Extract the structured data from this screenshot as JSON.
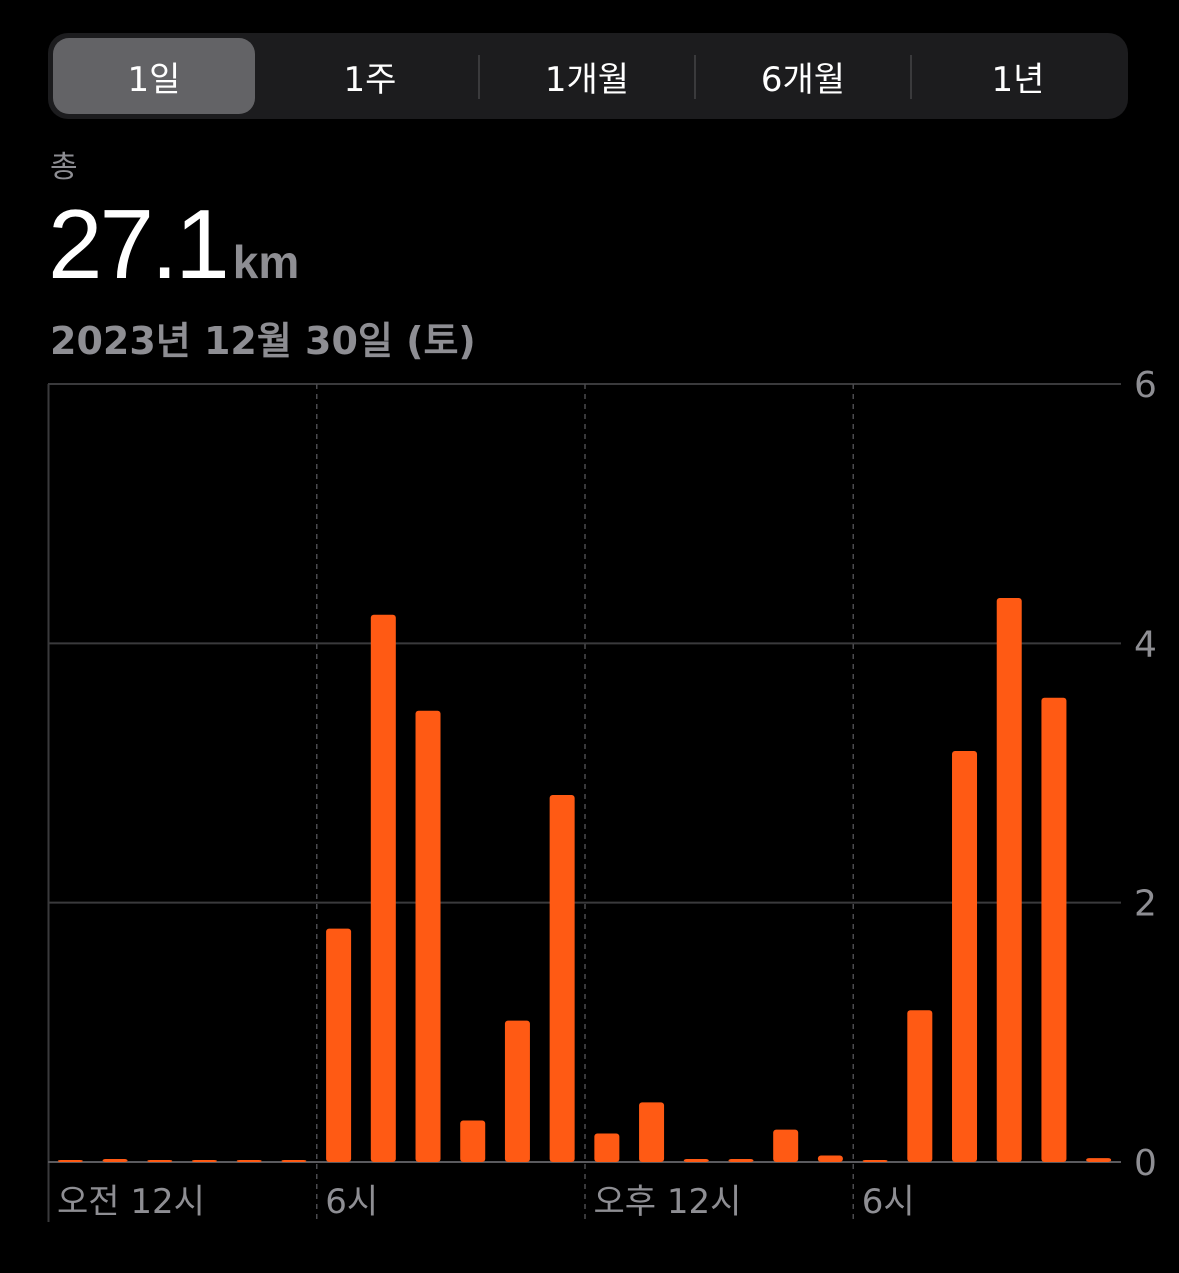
{
  "tabs": [
    {
      "label": "1일",
      "selected": true
    },
    {
      "label": "1주",
      "selected": false
    },
    {
      "label": "1개월",
      "selected": false
    },
    {
      "label": "6개월",
      "selected": false
    },
    {
      "label": "1년",
      "selected": false
    }
  ],
  "summary": {
    "label": "총",
    "value": "27.1",
    "unit": "km",
    "date": "2023년 12월 30일 (토)"
  },
  "colors": {
    "bar": "#ff5a14",
    "grid": "#3a3a3c",
    "axis_text": "#8e8e93",
    "selected_tab": "#636366"
  },
  "chart_data": {
    "type": "bar",
    "title": "",
    "xlabel": "",
    "ylabel": "km",
    "ylim": [
      0,
      6
    ],
    "y_ticks": [
      0,
      2,
      4,
      6
    ],
    "x_tick_labels": [
      {
        "hour": 0,
        "label": "오전 12시"
      },
      {
        "hour": 6,
        "label": "6시"
      },
      {
        "hour": 12,
        "label": "오후 12시"
      },
      {
        "hour": 18,
        "label": "6시"
      }
    ],
    "hours": [
      0,
      1,
      2,
      3,
      4,
      5,
      6,
      7,
      8,
      9,
      10,
      11,
      12,
      13,
      14,
      15,
      16,
      17,
      18,
      19,
      20,
      21,
      22,
      23
    ],
    "values": [
      0,
      0.02,
      0,
      0,
      0,
      0,
      1.8,
      4.22,
      3.48,
      0.32,
      1.09,
      2.83,
      0.22,
      0.46,
      0.01,
      0.01,
      0.25,
      0.05,
      0,
      1.17,
      3.17,
      4.35,
      3.58,
      0.03
    ],
    "grid": true,
    "y_axis_position": "right"
  }
}
